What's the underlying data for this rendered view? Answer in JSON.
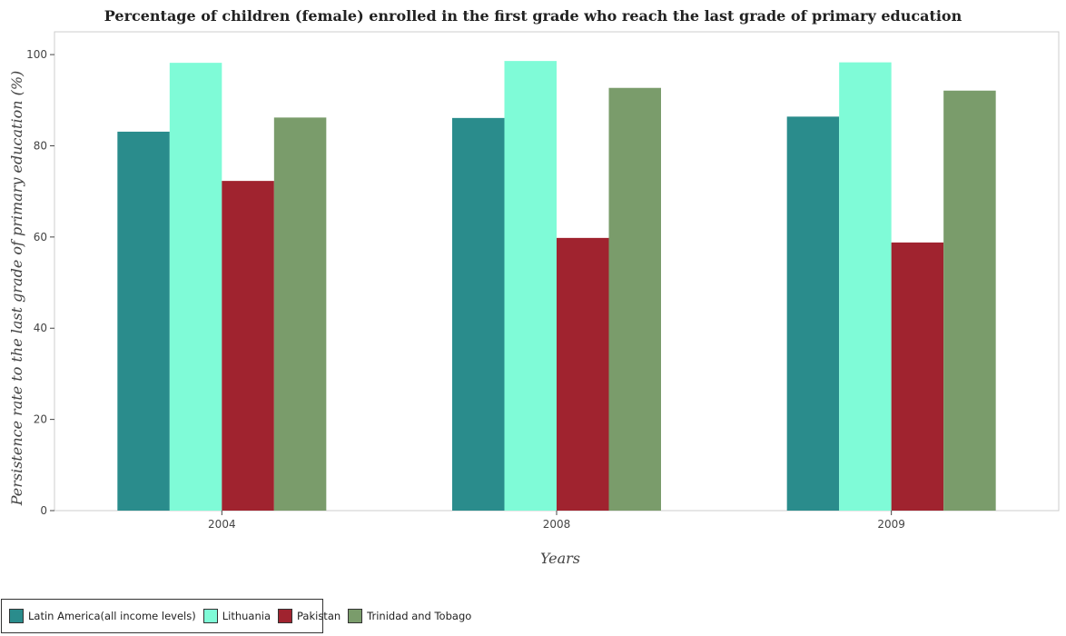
{
  "chart_data": {
    "type": "bar",
    "title": "Percentage of children (female) enrolled in the first grade who reach the last grade of primary education",
    "xlabel": "Years",
    "ylabel": "Persistence rate to the last grade of primary education (%)",
    "categories": [
      "2004",
      "2008",
      "2009"
    ],
    "ylim": [
      0,
      105
    ],
    "yticks": [
      0,
      20,
      40,
      60,
      80,
      100
    ],
    "series": [
      {
        "name": "Latin America(all income levels)",
        "color": "#2a8c8c",
        "values": [
          83.1,
          86.1,
          86.4
        ]
      },
      {
        "name": "Lithuania",
        "color": "#7ffbd7",
        "values": [
          98.2,
          98.6,
          98.3
        ]
      },
      {
        "name": "Pakistan",
        "color": "#a0232f",
        "values": [
          72.3,
          59.8,
          58.8
        ]
      },
      {
        "name": "Trinidad and Tobago",
        "color": "#7a9c6b",
        "values": [
          86.2,
          92.7,
          92.1
        ]
      }
    ],
    "legend_position": "bottom-left",
    "grid": false
  }
}
